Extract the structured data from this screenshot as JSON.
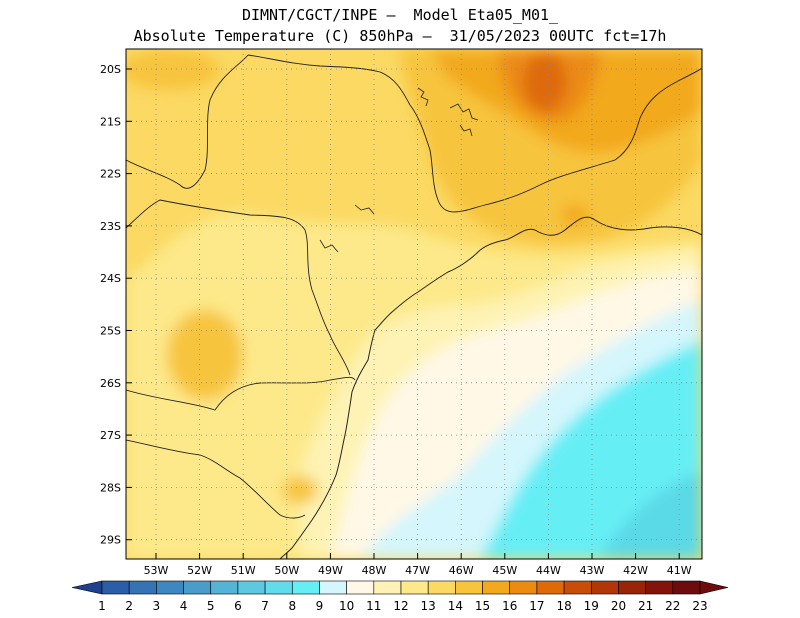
{
  "title_line1": "DIMNT/CGCT/INPE –  Model Eta05_M01_",
  "title_line2": "Absolute Temperature (C) 850hPa –  31/05/2023 00UTC fct=17h",
  "lat_labels": [
    "20S",
    "21S",
    "22S",
    "23S",
    "24S",
    "25S",
    "26S",
    "27S",
    "28S",
    "29S"
  ],
  "lon_labels": [
    "53W",
    "52W",
    "51W",
    "50W",
    "49W",
    "48W",
    "47W",
    "46W",
    "45W",
    "44W",
    "43W",
    "42W",
    "41W"
  ],
  "colorbar": {
    "labels": [
      "1",
      "2",
      "3",
      "4",
      "5",
      "6",
      "7",
      "8",
      "9",
      "10",
      "11",
      "12",
      "13",
      "14",
      "15",
      "16",
      "17",
      "18",
      "19",
      "20",
      "21",
      "22",
      "23"
    ],
    "colors": [
      "#1f3f8f",
      "#2a5fa8",
      "#3573b5",
      "#3f87c0",
      "#4a9dcb",
      "#55b3d6",
      "#5ec8e0",
      "#62dbea",
      "#66eef5",
      "#d4f6fc",
      "#fff8e6",
      "#fef3b4",
      "#fde98a",
      "#fbd963",
      "#f7c43c",
      "#f2a91d",
      "#ec8b12",
      "#de6a0a",
      "#c84e07",
      "#b23707",
      "#9a2408",
      "#84140a",
      "#6e0b0c"
    ]
  }
}
